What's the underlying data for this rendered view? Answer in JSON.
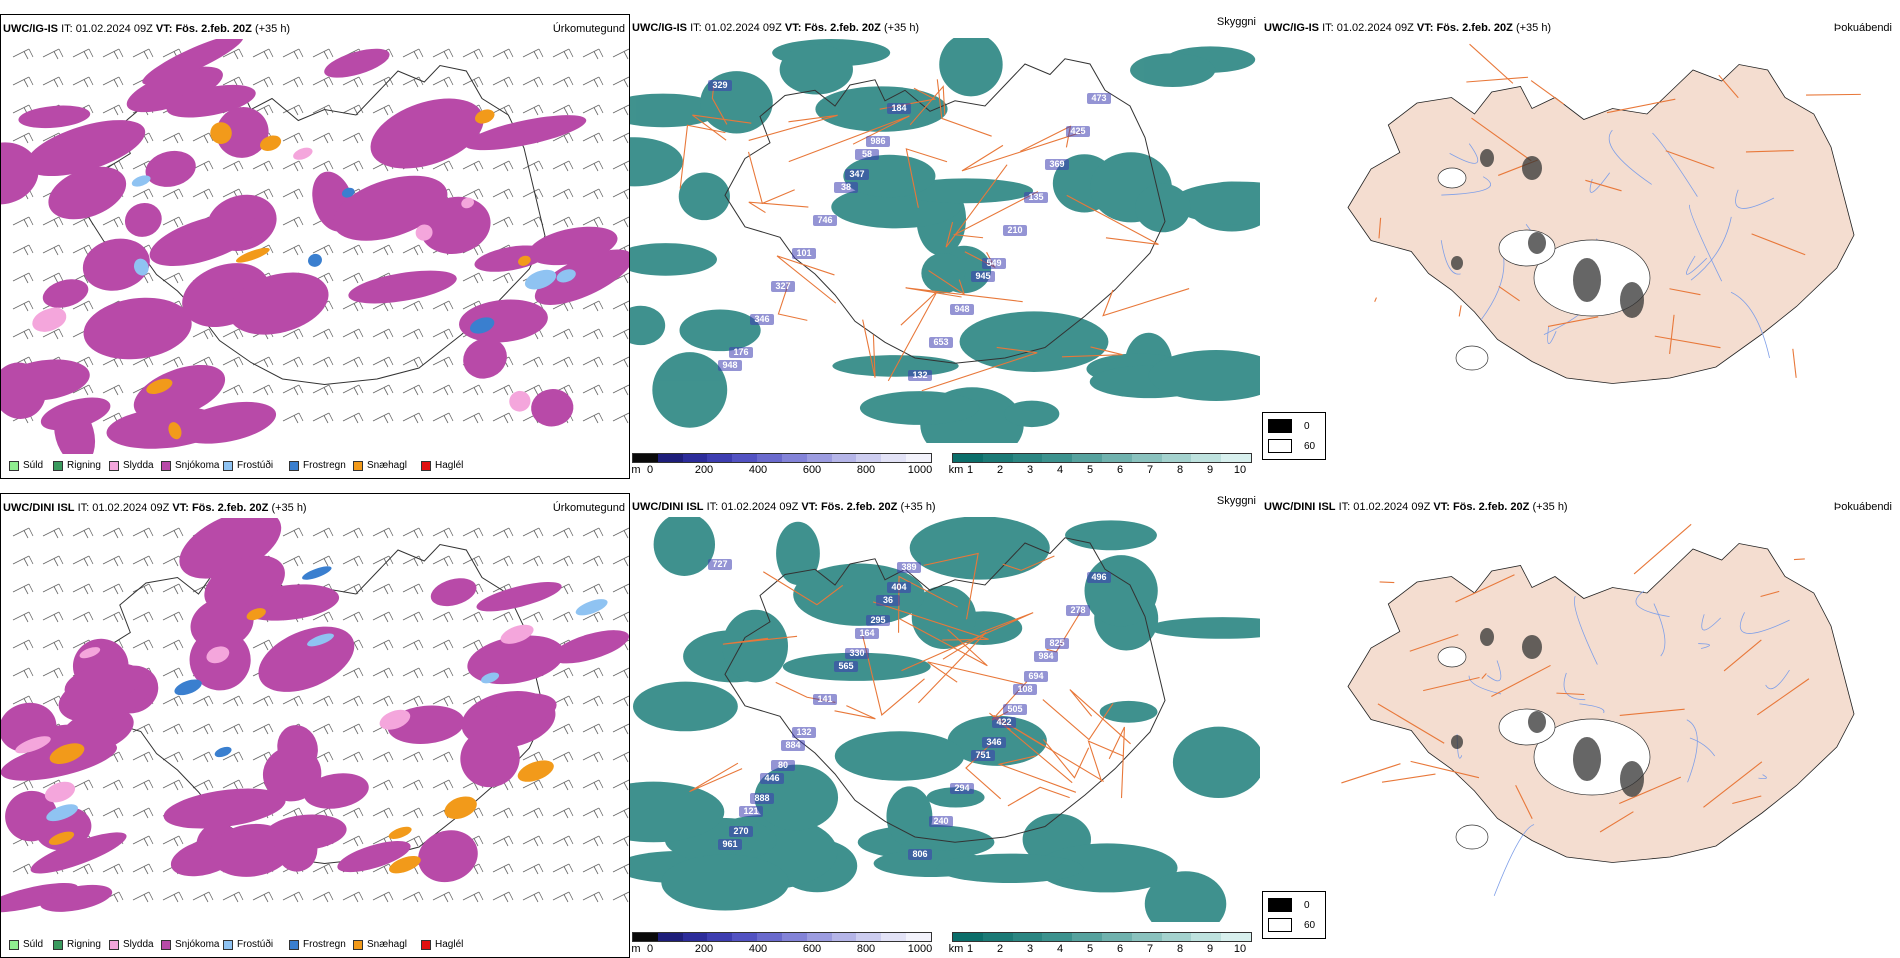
{
  "rows": [
    {
      "model": "UWC/IG-IS",
      "it_label": "IT:",
      "it_value": "01.02.2024 09Z",
      "vt_label": "VT:",
      "vt_value": "Fös. 2.feb. 20Z",
      "lead": "(+35 h)",
      "precip_title": "Úrkomutegund",
      "cloud_title": "Skyggni",
      "fog_title": "Þokuábendi",
      "cloud_labels": [
        "329",
        "347",
        "549",
        "176",
        "986",
        "210",
        "346",
        "184",
        "135",
        "327",
        "132",
        "369",
        "101",
        "653",
        "425",
        "746",
        "948",
        "473",
        "38",
        "945",
        "948",
        "58"
      ]
    },
    {
      "model": "UWC/DINI ISL",
      "it_label": "IT:",
      "it_value": "01.02.2024 09Z",
      "vt_label": "VT:",
      "vt_value": "Fös. 2.feb. 20Z",
      "lead": "(+35 h)",
      "precip_title": "Úrkomutegund",
      "cloud_title": "Skyggni",
      "fog_title": "Þokuábendi",
      "cloud_labels": [
        "727",
        "330",
        "346",
        "270",
        "295",
        "505",
        "888",
        "404",
        "694",
        "80",
        "806",
        "825",
        "132",
        "240",
        "278",
        "141",
        "294",
        "496",
        "565",
        "751",
        "961",
        "164",
        "422",
        "121",
        "36",
        "108",
        "446",
        "389",
        "984",
        "884"
      ]
    }
  ],
  "precip_legend": [
    {
      "label": "Súld",
      "color": "#90ee90"
    },
    {
      "label": "Rigning",
      "color": "#3a9a5e"
    },
    {
      "label": "Slydda",
      "color": "#f4a6dc"
    },
    {
      "label": "Snjókoma",
      "color": "#b84aa8"
    },
    {
      "label": "Frostúði",
      "color": "#8fc3f2"
    },
    {
      "label": "Frostregn",
      "color": "#3a7fcf"
    },
    {
      "label": "Snæhagl",
      "color": "#f29a1a"
    },
    {
      "label": "Haglél",
      "color": "#e01010"
    }
  ],
  "height_scale": {
    "unit": "m",
    "ticks": [
      "0",
      "200",
      "400",
      "600",
      "800",
      "1000"
    ],
    "colors": [
      "#0a0a0a",
      "#1e1e7a",
      "#2c2c9a",
      "#3d3db0",
      "#5252c2",
      "#6a6acd",
      "#8383d8",
      "#9c9ce0",
      "#b5b5e8",
      "#cdcdf0",
      "#e2e2f6",
      "#f2f2fb"
    ]
  },
  "vis_scale": {
    "unit": "km",
    "ticks": [
      "1",
      "2",
      "3",
      "4",
      "5",
      "6",
      "7",
      "8",
      "9",
      "10"
    ],
    "colors": [
      "#0b6e6a",
      "#1b7a76",
      "#2b8682",
      "#3c928e",
      "#56a29e",
      "#70b2ae",
      "#8ac2be",
      "#a4d2ce",
      "#bee2de",
      "#d8f0ee"
    ]
  },
  "fog_legend": {
    "black_label": "0",
    "white_label": "60"
  },
  "colors": {
    "snow": "#b84aa8",
    "vis": "#2b8682",
    "coast": "#333333",
    "roads": "#e8783a",
    "land": "#f4ddd0",
    "rivers": "#7f9fe8"
  }
}
